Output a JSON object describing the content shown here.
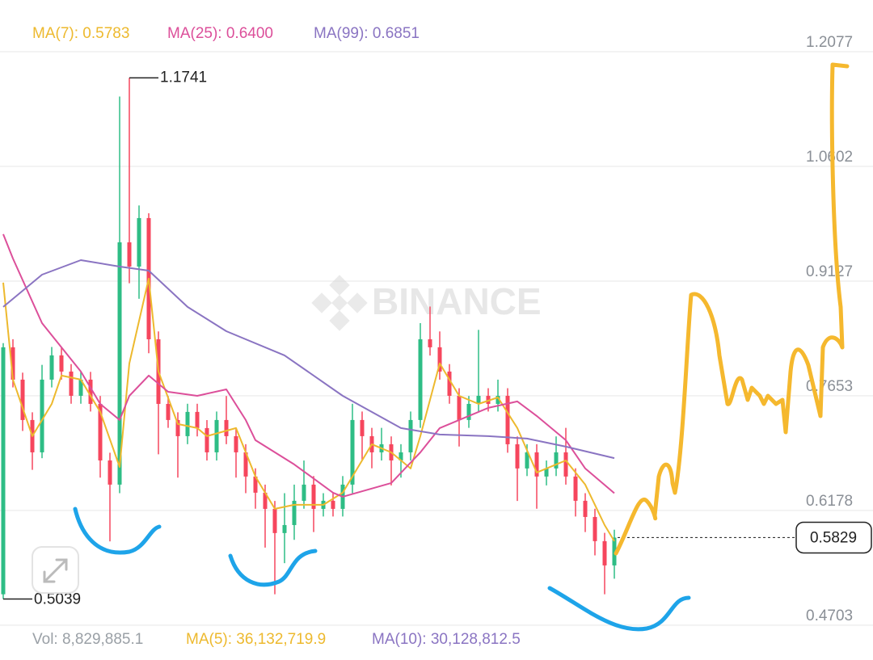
{
  "chart_data": {
    "type": "candlestick",
    "watermark": "BINANCE",
    "ylim": [
      0.4691,
      1.2742
    ],
    "yticks": [
      1.2077,
      1.0602,
      0.9127,
      0.7653,
      0.6178,
      0.4703
    ],
    "grid": true,
    "up_color": "#2ebd85",
    "down_color": "#f6465d",
    "candles": [
      [
        0.51,
        0.833,
        0.5039,
        0.8276
      ],
      [
        0.8276,
        0.838,
        0.776,
        0.786
      ],
      [
        0.786,
        0.795,
        0.72,
        0.7341
      ],
      [
        0.7341,
        0.744,
        0.67,
        0.6925
      ],
      [
        0.6925,
        0.805,
        0.685,
        0.786
      ],
      [
        0.786,
        0.828,
        0.776,
        0.8172
      ],
      [
        0.8172,
        0.827,
        0.786,
        0.7964
      ],
      [
        0.7964,
        0.806,
        0.755,
        0.7652
      ],
      [
        0.7652,
        0.7964,
        0.755,
        0.786
      ],
      [
        0.786,
        0.796,
        0.745,
        0.7548
      ],
      [
        0.7548,
        0.765,
        0.66,
        0.6821
      ],
      [
        0.6821,
        0.692,
        0.578,
        0.651
      ],
      [
        0.651,
        1.15,
        0.64,
        0.9626
      ],
      [
        0.9626,
        1.1741,
        0.91,
        0.9314
      ],
      [
        0.9314,
        1.01,
        0.89,
        0.9938
      ],
      [
        0.9938,
        1.0,
        0.82,
        0.8379
      ],
      [
        0.8379,
        0.848,
        0.69,
        0.7548
      ],
      [
        0.7548,
        0.765,
        0.724,
        0.7341
      ],
      [
        0.7341,
        0.744,
        0.66,
        0.7133
      ],
      [
        0.7133,
        0.755,
        0.703,
        0.7445
      ],
      [
        0.7445,
        0.755,
        0.713,
        0.7237
      ],
      [
        0.7237,
        0.734,
        0.682,
        0.6925
      ],
      [
        0.6925,
        0.745,
        0.682,
        0.7341
      ],
      [
        0.7341,
        0.765,
        0.703,
        0.7133
      ],
      [
        0.7133,
        0.724,
        0.66,
        0.6925
      ],
      [
        0.6925,
        0.703,
        0.64,
        0.6614
      ],
      [
        0.6614,
        0.672,
        0.62,
        0.6406
      ],
      [
        0.6406,
        0.651,
        0.57,
        0.6198
      ],
      [
        0.6198,
        0.63,
        0.51,
        0.5887
      ],
      [
        0.5887,
        0.64,
        0.55,
        0.599
      ],
      [
        0.599,
        0.651,
        0.58,
        0.6302
      ],
      [
        0.6302,
        0.682,
        0.62,
        0.651
      ],
      [
        0.651,
        0.662,
        0.59,
        0.6198
      ],
      [
        0.6198,
        0.64,
        0.61,
        0.6302
      ],
      [
        0.6302,
        0.64,
        0.61,
        0.6198
      ],
      [
        0.6198,
        0.662,
        0.61,
        0.651
      ],
      [
        0.651,
        0.755,
        0.64,
        0.7341
      ],
      [
        0.7341,
        0.745,
        0.682,
        0.7133
      ],
      [
        0.7133,
        0.724,
        0.672,
        0.6925
      ],
      [
        0.6925,
        0.724,
        0.682,
        0.7029
      ],
      [
        0.7029,
        0.713,
        0.65,
        0.6821
      ],
      [
        0.6821,
        0.703,
        0.66,
        0.6925
      ],
      [
        0.6925,
        0.745,
        0.682,
        0.7341
      ],
      [
        0.7341,
        0.8587,
        0.724,
        0.8379
      ],
      [
        0.8379,
        0.88,
        0.817,
        0.8276
      ],
      [
        0.8276,
        0.848,
        0.786,
        0.7964
      ],
      [
        0.7964,
        0.806,
        0.755,
        0.7652
      ],
      [
        0.7652,
        0.775,
        0.7,
        0.7341
      ],
      [
        0.7341,
        0.765,
        0.724,
        0.7548
      ],
      [
        0.7548,
        0.85,
        0.745,
        0.7652
      ],
      [
        0.7652,
        0.775,
        0.745,
        0.7548
      ],
      [
        0.7548,
        0.786,
        0.745,
        0.7652
      ],
      [
        0.7652,
        0.775,
        0.692,
        0.7029
      ],
      [
        0.7029,
        0.713,
        0.63,
        0.6718
      ],
      [
        0.6718,
        0.703,
        0.662,
        0.6925
      ],
      [
        0.6925,
        0.703,
        0.62,
        0.6614
      ],
      [
        0.6614,
        0.682,
        0.65,
        0.6718
      ],
      [
        0.6718,
        0.713,
        0.662,
        0.6925
      ],
      [
        0.6925,
        0.724,
        0.651,
        0.6614
      ],
      [
        0.6614,
        0.672,
        0.61,
        0.6302
      ],
      [
        0.6302,
        0.64,
        0.59,
        0.6094
      ],
      [
        0.6094,
        0.62,
        0.56,
        0.5783
      ],
      [
        0.5783,
        0.589,
        0.51,
        0.5471
      ],
      [
        0.5471,
        0.593,
        0.53,
        0.5829
      ]
    ],
    "high_label": 1.1741,
    "high_index": 13,
    "low_label": 0.5039,
    "low_index": 0,
    "last_price": 0.5829,
    "ma_series": [
      {
        "name": "MA(7): 0.5783",
        "color": "#edb92e",
        "x": [
          0,
          1,
          3,
          5,
          6,
          8,
          10,
          12,
          13,
          15,
          16,
          18,
          20,
          21,
          24,
          26,
          28,
          30,
          33,
          35,
          38,
          40,
          42,
          43,
          45,
          47,
          49,
          51,
          53,
          55,
          57,
          58,
          60,
          62,
          63
        ],
        "values": [
          0.9107,
          0.786,
          0.7133,
          0.7548,
          0.7912,
          0.786,
          0.7445,
          0.6738,
          0.8068,
          0.9159,
          0.7964,
          0.7289,
          0.7237,
          0.7133,
          0.7237,
          0.6614,
          0.6198,
          0.625,
          0.625,
          0.6406,
          0.7029,
          0.6925,
          0.6718,
          0.7133,
          0.8068,
          0.7652,
          0.7548,
          0.7631,
          0.7237,
          0.6666,
          0.677,
          0.6821,
          0.651,
          0.599,
          0.5783
        ]
      },
      {
        "name": "MA(25): 0.6400",
        "color": "#dc4f9a",
        "x": [
          0,
          1,
          4,
          8,
          10,
          12,
          13,
          15,
          17,
          20,
          23,
          25,
          26,
          30,
          34,
          35,
          40,
          43,
          45,
          50,
          53,
          55,
          58,
          60,
          63
        ],
        "values": [
          0.973,
          0.9418,
          0.8587,
          0.7964,
          0.7548,
          0.7341,
          0.7652,
          0.7912,
          0.7704,
          0.7652,
          0.7735,
          0.7341,
          0.7081,
          0.677,
          0.6406,
          0.6354,
          0.6531,
          0.6925,
          0.7237,
          0.7497,
          0.758,
          0.7393,
          0.7081,
          0.6718,
          0.64
        ]
      },
      {
        "name": "MA(99): 0.6851",
        "color": "#8a74c2",
        "x": [
          0,
          4,
          8,
          12,
          15,
          19,
          23,
          29,
          35,
          41,
          45,
          50,
          54,
          58,
          63
        ],
        "values": [
          0.8795,
          0.921,
          0.9397,
          0.9314,
          0.9262,
          0.8795,
          0.8483,
          0.8172,
          0.7652,
          0.7237,
          0.7154,
          0.7133,
          0.7102,
          0.6998,
          0.6851
        ]
      }
    ],
    "volume_legend": [
      {
        "text": "Vol: 8,829,885.1",
        "color": "#9aa0a6"
      },
      {
        "text": "MA(5): 36,132,719.9",
        "color": "#edb92e"
      },
      {
        "text": "MA(10): 30,128,812.5",
        "color": "#8a74c2"
      }
    ]
  }
}
